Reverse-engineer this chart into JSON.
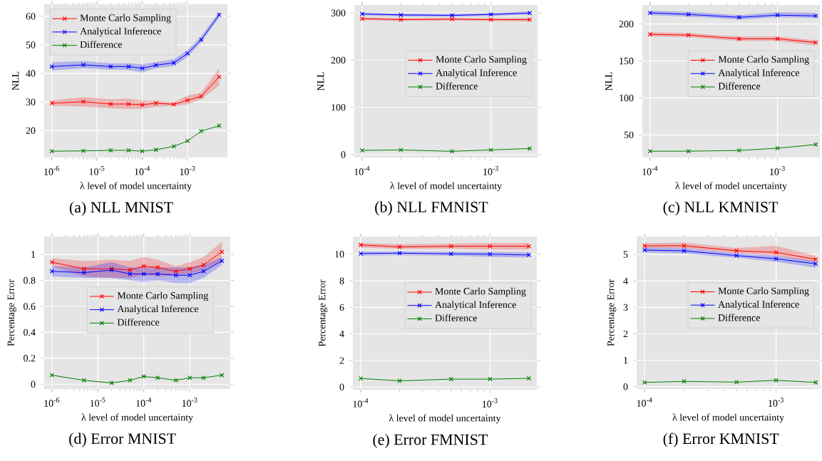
{
  "chart_data": [
    {
      "type": "line",
      "title": "(a) NLL MNIST",
      "xlabel": "λ level of model uncertainty",
      "ylabel": "NLL",
      "log": "x",
      "grid": true,
      "legend": "top left",
      "marker": "cross",
      "x": [
        1e-06,
        5e-06,
        2e-05,
        5e-05,
        0.0001,
        0.0002,
        0.0005,
        0.001,
        0.002,
        0.005
      ],
      "xlim": [
        6.8e-07,
        0.0076
      ],
      "xticks": [
        {
          "value": 1e-06,
          "label": "10$^{-6}$"
        },
        {
          "value": 1e-05,
          "label": "10$^{-5}$"
        },
        {
          "value": 0.0001,
          "label": "10$^{-4}$"
        },
        {
          "value": 0.001,
          "label": "10$^{-3}$"
        }
      ],
      "ylim": [
        10.6,
        64.2
      ],
      "yticks": [
        20,
        30,
        40,
        50,
        60
      ],
      "series": [
        {
          "name": "Monte Carlo Sampling",
          "color": "#ff0000",
          "values": [
            29.6,
            30.1,
            29.3,
            29.3,
            29.0,
            29.6,
            29.2,
            30.6,
            32.0,
            38.8
          ],
          "lower": [
            28.7,
            28.4,
            27.8,
            27.5,
            27.6,
            28.3,
            28.6,
            29.2,
            31.0,
            35.8
          ],
          "upper": [
            30.6,
            31.7,
            30.9,
            31.2,
            30.5,
            30.5,
            29.9,
            32.3,
            33.3,
            41.9
          ]
        },
        {
          "name": "Analytical Inference",
          "color": "#0000ff",
          "values": [
            42.4,
            43.0,
            42.4,
            42.4,
            41.8,
            42.9,
            43.7,
            47.0,
            51.8,
            60.5
          ],
          "lower": [
            41.0,
            41.8,
            41.3,
            41.2,
            40.3,
            41.8,
            42.5,
            45.8,
            50.8,
            59.5
          ],
          "upper": [
            43.9,
            44.3,
            43.6,
            43.6,
            43.2,
            44.0,
            45.0,
            48.2,
            53.0,
            61.6
          ]
        },
        {
          "name": "Difference",
          "color": "#008000",
          "values": [
            12.8,
            12.9,
            13.1,
            13.1,
            12.8,
            13.3,
            14.5,
            16.4,
            19.8,
            21.7
          ]
        }
      ]
    },
    {
      "type": "line",
      "title": "(b) NLL FMNIST",
      "xlabel": "λ level of model uncertainty",
      "ylabel": "NLL",
      "log": "x",
      "grid": true,
      "legend": "right",
      "marker": "cross",
      "x": [
        0.0001,
        0.0002,
        0.0005,
        0.001,
        0.002
      ],
      "xlim": [
        8.7e-05,
        0.0023
      ],
      "xticks": [
        {
          "value": 0.0001,
          "label": "10$^{-4}$"
        },
        {
          "value": 0.001,
          "label": "10$^{-3}$"
        }
      ],
      "ylim": [
        -6,
        317
      ],
      "yticks": [
        0,
        100,
        200,
        300
      ],
      "series": [
        {
          "name": "Monte Carlo Sampling",
          "color": "#ff0000",
          "values": [
            288,
            286,
            287,
            286,
            286
          ],
          "lower": [
            285,
            283,
            284,
            283,
            282
          ],
          "upper": [
            291,
            289,
            290,
            289,
            290
          ]
        },
        {
          "name": "Analytical Inference",
          "color": "#0000ff",
          "values": [
            298,
            296,
            295,
            297,
            300
          ],
          "lower": [
            295,
            293,
            292,
            294,
            297
          ],
          "upper": [
            301,
            299,
            298,
            300,
            303
          ]
        },
        {
          "name": "Difference",
          "color": "#008000",
          "values": [
            9,
            10,
            7,
            10,
            13
          ]
        }
      ]
    },
    {
      "type": "line",
      "title": "(c) NLL KMNIST",
      "xlabel": "λ level of model uncertainty",
      "ylabel": "NLL",
      "log": "x",
      "grid": true,
      "legend": "right",
      "marker": "cross",
      "x": [
        0.0001,
        0.0002,
        0.0005,
        0.001,
        0.002
      ],
      "xlim": [
        8.7e-05,
        0.00215
      ],
      "xticks": [
        {
          "value": 0.0001,
          "label": "10$^{-4}$"
        },
        {
          "value": 0.001,
          "label": "10$^{-3}$"
        }
      ],
      "ylim": [
        19.5,
        225.7
      ],
      "yticks": [
        50,
        100,
        150,
        200
      ],
      "series": [
        {
          "name": "Monte Carlo Sampling",
          "color": "#ff0000",
          "values": [
            186,
            185,
            180,
            180,
            175
          ],
          "lower": [
            183,
            182,
            177,
            177,
            171
          ],
          "upper": [
            189,
            188,
            183,
            183,
            178
          ]
        },
        {
          "name": "Analytical Inference",
          "color": "#0000ff",
          "values": [
            215,
            213,
            209,
            212,
            211
          ],
          "lower": [
            212,
            210,
            206,
            209,
            208
          ],
          "upper": [
            218,
            216.5,
            212,
            216,
            215
          ]
        },
        {
          "name": "Difference",
          "color": "#008000",
          "values": [
            28,
            28,
            29,
            32,
            37
          ]
        }
      ]
    },
    {
      "type": "line",
      "title": "(d) Error MNIST",
      "xlabel": "λ level of model uncertainty",
      "ylabel": "Percentage Error",
      "log": "x",
      "grid": true,
      "legend": "center",
      "marker": "cross",
      "x": [
        1e-06,
        5e-06,
        2e-05,
        5e-05,
        0.0001,
        0.0002,
        0.0005,
        0.001,
        0.002,
        0.005
      ],
      "xlim": [
        6.8e-07,
        0.0076
      ],
      "xticks": [
        {
          "value": 1e-06,
          "label": "10$^{-6}$"
        },
        {
          "value": 1e-05,
          "label": "10$^{-5}$"
        },
        {
          "value": 0.0001,
          "label": "10$^{-4}$"
        },
        {
          "value": 0.001,
          "label": "10$^{-3}$"
        }
      ],
      "ylim": [
        -0.037,
        1.138
      ],
      "yticks": [
        0,
        0.2,
        0.4,
        0.6,
        0.8,
        1
      ],
      "series": [
        {
          "name": "Monte Carlo Sampling",
          "color": "#ff0000",
          "values": [
            0.94,
            0.89,
            0.89,
            0.88,
            0.91,
            0.9,
            0.87,
            0.89,
            0.92,
            1.02
          ],
          "lower": [
            0.91,
            0.83,
            0.82,
            0.82,
            0.84,
            0.83,
            0.84,
            0.85,
            0.88,
            0.95
          ],
          "upper": [
            0.97,
            0.95,
            0.96,
            0.95,
            0.98,
            0.96,
            0.91,
            0.94,
            0.98,
            1.1
          ]
        },
        {
          "name": "Analytical Inference",
          "color": "#0000ff",
          "values": [
            0.87,
            0.86,
            0.88,
            0.85,
            0.85,
            0.85,
            0.84,
            0.84,
            0.87,
            0.95
          ],
          "lower": [
            0.83,
            0.82,
            0.82,
            0.8,
            0.79,
            0.8,
            0.78,
            0.78,
            0.82,
            0.92
          ],
          "upper": [
            0.91,
            0.9,
            0.94,
            0.9,
            0.9,
            0.9,
            0.9,
            0.9,
            0.92,
            0.98
          ]
        },
        {
          "name": "Difference",
          "color": "#008000",
          "values": [
            0.07,
            0.03,
            0.01,
            0.03,
            0.06,
            0.05,
            0.03,
            0.05,
            0.05,
            0.07
          ]
        }
      ]
    },
    {
      "type": "line",
      "title": "(e) Error FMNIST",
      "xlabel": "λ level of model uncertainty",
      "ylabel": "Percentage Error",
      "log": "x",
      "grid": true,
      "legend": "right",
      "marker": "cross",
      "x": [
        0.0001,
        0.0002,
        0.0005,
        0.001,
        0.002
      ],
      "xlim": [
        8.7e-05,
        0.0023
      ],
      "xticks": [
        {
          "value": 0.0001,
          "label": "10$^{-4}$"
        },
        {
          "value": 0.001,
          "label": "10$^{-3}$"
        }
      ],
      "ylim": [
        -0.2,
        11.33
      ],
      "yticks": [
        0,
        2,
        4,
        6,
        8,
        10
      ],
      "series": [
        {
          "name": "Monte Carlo Sampling",
          "color": "#ff0000",
          "values": [
            10.7,
            10.55,
            10.6,
            10.6,
            10.6
          ],
          "lower": [
            10.5,
            10.4,
            10.4,
            10.35,
            10.35
          ],
          "upper": [
            10.85,
            10.75,
            10.8,
            10.85,
            10.85
          ]
        },
        {
          "name": "Analytical Inference",
          "color": "#0000ff",
          "values": [
            10.05,
            10.08,
            10.03,
            10.0,
            9.95
          ],
          "lower": [
            9.9,
            9.92,
            9.88,
            9.8,
            9.75
          ],
          "upper": [
            10.2,
            10.2,
            10.18,
            10.18,
            10.15
          ]
        },
        {
          "name": "Difference",
          "color": "#008000",
          "values": [
            0.65,
            0.47,
            0.6,
            0.6,
            0.66
          ]
        }
      ]
    },
    {
      "type": "line",
      "title": "(f) Error KMNIST",
      "xlabel": "λ level of model uncertainty",
      "ylabel": "Percentage Error",
      "log": "x",
      "grid": true,
      "legend": "right",
      "marker": "cross",
      "x": [
        0.0001,
        0.0002,
        0.0005,
        0.001,
        0.002
      ],
      "xlim": [
        8.7e-05,
        0.00215
      ],
      "xticks": [
        {
          "value": 0.0001,
          "label": "10$^{-4}$"
        },
        {
          "value": 0.001,
          "label": "10$^{-3}$"
        }
      ],
      "ylim": [
        -0.09,
        5.68
      ],
      "yticks": [
        0,
        1,
        2,
        3,
        4,
        5
      ],
      "series": [
        {
          "name": "Monte Carlo Sampling",
          "color": "#ff0000",
          "values": [
            5.33,
            5.33,
            5.14,
            5.08,
            4.82
          ],
          "lower": [
            5.25,
            5.25,
            5.05,
            4.95,
            4.7
          ],
          "upper": [
            5.43,
            5.45,
            5.25,
            5.33,
            4.95
          ]
        },
        {
          "name": "Analytical Inference",
          "color": "#0000ff",
          "values": [
            5.17,
            5.14,
            4.96,
            4.84,
            4.65
          ],
          "lower": [
            5.07,
            5.03,
            4.88,
            4.72,
            4.5
          ],
          "upper": [
            5.27,
            5.25,
            5.05,
            4.95,
            4.75
          ]
        },
        {
          "name": "Difference",
          "color": "#008000",
          "values": [
            0.16,
            0.2,
            0.17,
            0.24,
            0.16
          ]
        }
      ]
    }
  ]
}
